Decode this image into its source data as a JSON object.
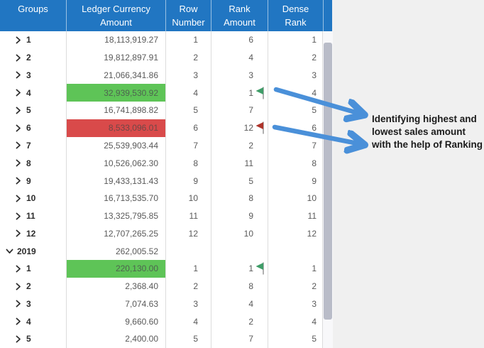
{
  "header": {
    "columns": [
      {
        "line1": "Groups",
        "line2": ""
      },
      {
        "line1": "Ledger Currency",
        "line2": "Amount"
      },
      {
        "line1": "Row",
        "line2": "Number"
      },
      {
        "line1": "Rank",
        "line2": "Amount"
      },
      {
        "line1": "Dense",
        "line2": "Rank"
      }
    ]
  },
  "table": {
    "rows": [
      {
        "group": "1",
        "level": 2,
        "expanded": false,
        "amount": "18,113,919.27",
        "row_number": "1",
        "rank": "6",
        "dense_rank": "1",
        "highlight": "none",
        "flag": "none"
      },
      {
        "group": "2",
        "level": 2,
        "expanded": false,
        "amount": "19,812,897.91",
        "row_number": "2",
        "rank": "4",
        "dense_rank": "2",
        "highlight": "none",
        "flag": "none"
      },
      {
        "group": "3",
        "level": 2,
        "expanded": false,
        "amount": "21,066,341.86",
        "row_number": "3",
        "rank": "3",
        "dense_rank": "3",
        "highlight": "none",
        "flag": "none"
      },
      {
        "group": "4",
        "level": 2,
        "expanded": false,
        "amount": "32,939,530.92",
        "row_number": "4",
        "rank": "1",
        "dense_rank": "4",
        "highlight": "green",
        "flag": "green"
      },
      {
        "group": "5",
        "level": 2,
        "expanded": false,
        "amount": "16,741,898.82",
        "row_number": "5",
        "rank": "7",
        "dense_rank": "5",
        "highlight": "none",
        "flag": "none"
      },
      {
        "group": "6",
        "level": 2,
        "expanded": false,
        "amount": "8,533,096.01",
        "row_number": "6",
        "rank": "12",
        "dense_rank": "6",
        "highlight": "red",
        "flag": "red"
      },
      {
        "group": "7",
        "level": 2,
        "expanded": false,
        "amount": "25,539,903.44",
        "row_number": "7",
        "rank": "2",
        "dense_rank": "7",
        "highlight": "none",
        "flag": "none"
      },
      {
        "group": "8",
        "level": 2,
        "expanded": false,
        "amount": "10,526,062.30",
        "row_number": "8",
        "rank": "11",
        "dense_rank": "8",
        "highlight": "none",
        "flag": "none"
      },
      {
        "group": "9",
        "level": 2,
        "expanded": false,
        "amount": "19,433,131.43",
        "row_number": "9",
        "rank": "5",
        "dense_rank": "9",
        "highlight": "none",
        "flag": "none"
      },
      {
        "group": "10",
        "level": 2,
        "expanded": false,
        "amount": "16,713,535.70",
        "row_number": "10",
        "rank": "8",
        "dense_rank": "10",
        "highlight": "none",
        "flag": "none"
      },
      {
        "group": "11",
        "level": 2,
        "expanded": false,
        "amount": "13,325,795.85",
        "row_number": "11",
        "rank": "9",
        "dense_rank": "11",
        "highlight": "none",
        "flag": "none"
      },
      {
        "group": "12",
        "level": 2,
        "expanded": false,
        "amount": "12,707,265.25",
        "row_number": "12",
        "rank": "10",
        "dense_rank": "12",
        "highlight": "none",
        "flag": "none"
      },
      {
        "group": "2019",
        "level": 1,
        "expanded": true,
        "amount": "262,005.52",
        "row_number": "",
        "rank": "",
        "dense_rank": "",
        "highlight": "none",
        "flag": "none"
      },
      {
        "group": "1",
        "level": 2,
        "expanded": false,
        "amount": "220,130.00",
        "row_number": "1",
        "rank": "1",
        "dense_rank": "1",
        "highlight": "green",
        "flag": "green"
      },
      {
        "group": "2",
        "level": 2,
        "expanded": false,
        "amount": "2,368.40",
        "row_number": "2",
        "rank": "8",
        "dense_rank": "2",
        "highlight": "none",
        "flag": "none"
      },
      {
        "group": "3",
        "level": 2,
        "expanded": false,
        "amount": "7,074.63",
        "row_number": "3",
        "rank": "4",
        "dense_rank": "3",
        "highlight": "none",
        "flag": "none"
      },
      {
        "group": "4",
        "level": 2,
        "expanded": false,
        "amount": "9,660.60",
        "row_number": "4",
        "rank": "2",
        "dense_rank": "4",
        "highlight": "none",
        "flag": "none"
      },
      {
        "group": "5",
        "level": 2,
        "expanded": false,
        "amount": "2,400.00",
        "row_number": "5",
        "rank": "7",
        "dense_rank": "5",
        "highlight": "none",
        "flag": "none"
      }
    ]
  },
  "annotation": {
    "line1": "Identifying highest and",
    "line2": "lowest sales amount",
    "line3": "with the help of Ranking"
  },
  "colors": {
    "header_bg": "#2176c2",
    "highlight_green": "#5ec457",
    "highlight_red": "#d94a4a",
    "green_flag": "#3f9d68",
    "red_flag": "#ae342b",
    "arrow_blue": "#4a90d9"
  }
}
